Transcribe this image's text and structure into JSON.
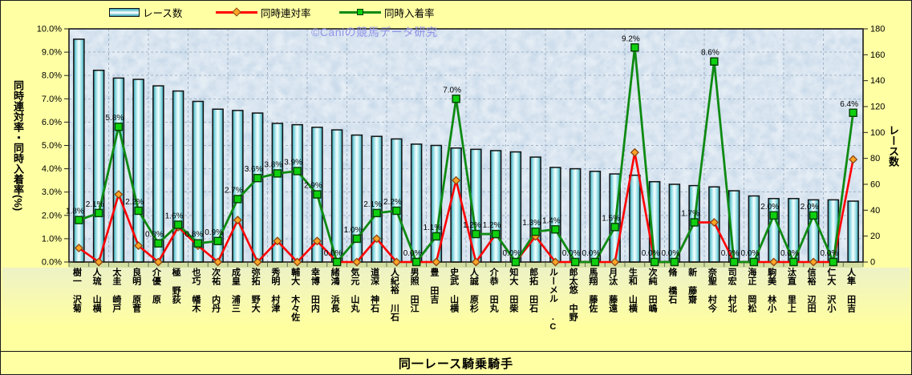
{
  "chart_data": {
    "type": "combo",
    "title": "同一レース騎乗騎手",
    "watermark": "©Caniの競馬データ研究",
    "categories": [
      "菊沢 一樹",
      "横山 琉人",
      "戸崎 圭太",
      "菅原 明良",
      "原 優介",
      "荻野 極",
      "木幡 巧也",
      "丹内 祐次",
      "三浦 皇成",
      "大野 拓弥",
      "津村 明秀",
      "佐々木 大輔",
      "内田 博幸",
      "長浜 鴻緒",
      "丸山 元気",
      "石神 深道",
      "石川 裕紀人",
      "江田 照男",
      "吉田 豊",
      "横山 武史",
      "杉原 誠人",
      "丸田 恭介",
      "柴田 大知",
      "石田 拓郎",
      "C. ルメール",
      "野中 悠太郎",
      "佐藤 翔馬",
      "遠藤 汰月",
      "横山 和生",
      "嶋田 純次",
      "石橋 脩",
      "齋藤 新",
      "今村 聖奈",
      "北村 宏司",
      "松岡 正海",
      "小林 美駒",
      "上里 直汰",
      "田辺 裕信",
      "小沢 大仁",
      "吉田 隼人"
    ],
    "series": [
      {
        "name": "レース数",
        "type": "bar",
        "axis": "right",
        "values": [
          172,
          148,
          142,
          141,
          136,
          132,
          124,
          118,
          117,
          115,
          107,
          106,
          104,
          102,
          98,
          97,
          95,
          91,
          90,
          88,
          87,
          86,
          85,
          81,
          73,
          72,
          70,
          68,
          67,
          62,
          60,
          59,
          58,
          55,
          51,
          49,
          49,
          48,
          48,
          47
        ]
      },
      {
        "name": "同時連対率",
        "type": "line",
        "axis": "left",
        "marker": "diamond",
        "values": [
          0.6,
          0.0,
          2.9,
          0.7,
          0.0,
          1.5,
          0.7,
          0.0,
          1.8,
          0.0,
          0.9,
          0.0,
          0.9,
          0.0,
          0.0,
          1.0,
          0.0,
          0.0,
          0.0,
          3.5,
          0.0,
          1.2,
          0.0,
          1.1,
          0.0,
          0.0,
          0.0,
          0.0,
          4.7,
          0.0,
          0.0,
          1.7,
          1.7,
          0.0,
          0.0,
          0.0,
          0.0,
          0.0,
          0.0,
          4.4
        ]
      },
      {
        "name": "同時入着率",
        "type": "line",
        "axis": "left",
        "marker": "square",
        "data_labels": true,
        "values": [
          1.8,
          2.1,
          5.8,
          2.2,
          0.8,
          1.6,
          0.8,
          0.9,
          2.7,
          3.6,
          3.8,
          3.9,
          2.9,
          0.0,
          1.0,
          2.1,
          2.2,
          0.0,
          1.1,
          7.0,
          1.2,
          1.2,
          0.0,
          1.3,
          1.4,
          0.0,
          0.0,
          1.5,
          9.2,
          0.0,
          0.0,
          1.7,
          8.6,
          0.0,
          0.0,
          2.0,
          0.0,
          2.0,
          0.0,
          6.4
        ]
      }
    ],
    "left_axis": {
      "title": "同時連対率・同時入着率(%)",
      "min": 0,
      "max": 10,
      "step": 1,
      "suffix": "%",
      "decimals": 1
    },
    "right_axis": {
      "title": "レース数",
      "min": 0,
      "max": 180,
      "step": 20
    },
    "grid": "on",
    "legend_position": "top",
    "colors": {
      "background": "#FFFFA3",
      "plot_background": "#C9DAEA",
      "gridline": "#8FA3B8",
      "bar_fill_dark": "#2FA3B5",
      "bar_fill_light": "#F6FFFF",
      "bar_border": "#111111",
      "rentai_line": "#FF0000",
      "rentai_marker_fill": "#FFA526",
      "rentai_marker_border": "#8B4513",
      "nyuchaku_line": "#0E8A12",
      "nyuchaku_marker_fill": "#0FD00F",
      "nyuchaku_marker_border": "#053E05",
      "watermark": "#8E8EE8"
    }
  }
}
